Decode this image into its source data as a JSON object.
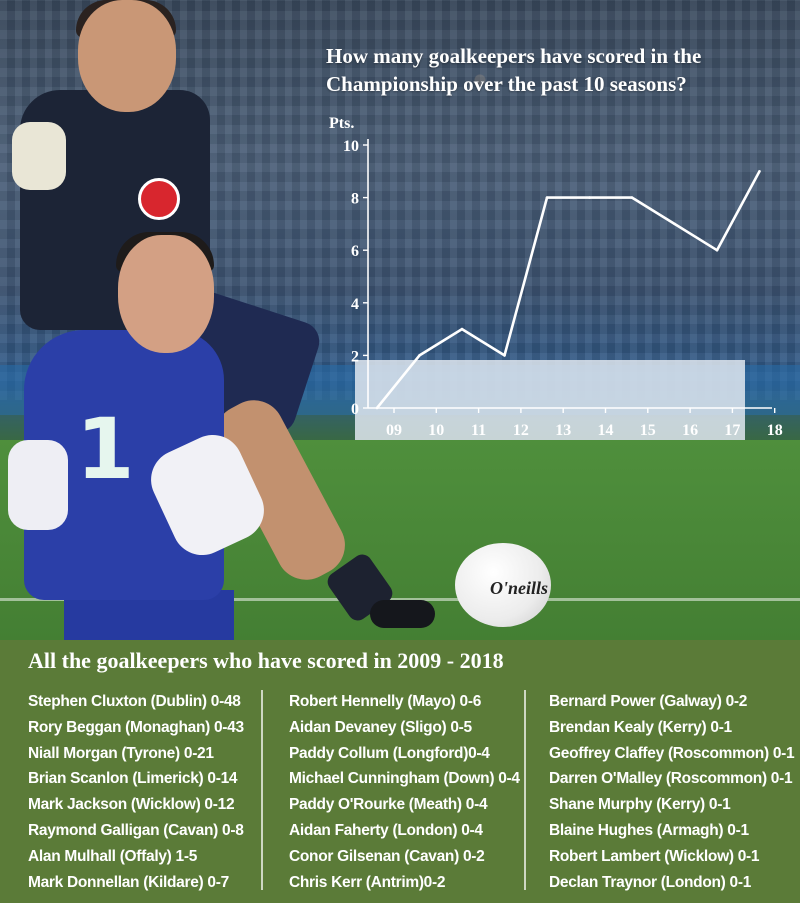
{
  "chart_data": {
    "type": "line",
    "title": "How many goalkeepers have scored in the Championship over the past 10 seasons?",
    "ylabel": "Pts.",
    "xlabel": "",
    "x": [
      "09",
      "10",
      "11",
      "12",
      "13",
      "14",
      "15",
      "16",
      "17",
      "18"
    ],
    "values": [
      0,
      2,
      3,
      2,
      8,
      8,
      8,
      7,
      6,
      9
    ],
    "ylim": [
      0,
      10
    ],
    "yticks": [
      "0",
      "2",
      "4",
      "6",
      "8",
      "10"
    ],
    "grid": false
  },
  "ball_brand": "O'neills",
  "jersey_number": "1",
  "list": {
    "title": "All the goalkeepers who have scored in 2009 - 2018",
    "columns": [
      [
        "Stephen Cluxton (Dublin) 0-48",
        "Rory Beggan (Monaghan) 0-43",
        "Niall Morgan (Tyrone) 0-21",
        "Brian Scanlon (Limerick) 0-14",
        "Mark Jackson (Wicklow) 0-12",
        "Raymond Galligan (Cavan) 0-8",
        "Alan Mulhall (Offaly) 1-5",
        "Mark Donnellan (Kildare) 0-7"
      ],
      [
        "Robert Hennelly (Mayo) 0-6",
        "Aidan Devaney (Sligo) 0-5",
        "Paddy Collum (Longford)0-4",
        "Michael Cunningham (Down) 0-4",
        "Paddy O'Rourke (Meath) 0-4",
        "Aidan Faherty (London) 0-4",
        "Conor Gilsenan (Cavan) 0-2",
        "Chris Kerr (Antrim)0-2"
      ],
      [
        "Bernard Power (Galway) 0-2",
        "Brendan Kealy (Kerry) 0-1",
        "Geoffrey Claffey (Roscommon) 0-1",
        "Darren O'Malley (Roscommon) 0-1",
        "Shane Murphy (Kerry) 0-1",
        "Blaine Hughes (Armagh) 0-1",
        "Robert Lambert (Wicklow) 0-1",
        "Declan Traynor (London) 0-1"
      ]
    ]
  },
  "colors": {
    "panel": "#5b7b38",
    "chart_line": "#ffffff"
  }
}
